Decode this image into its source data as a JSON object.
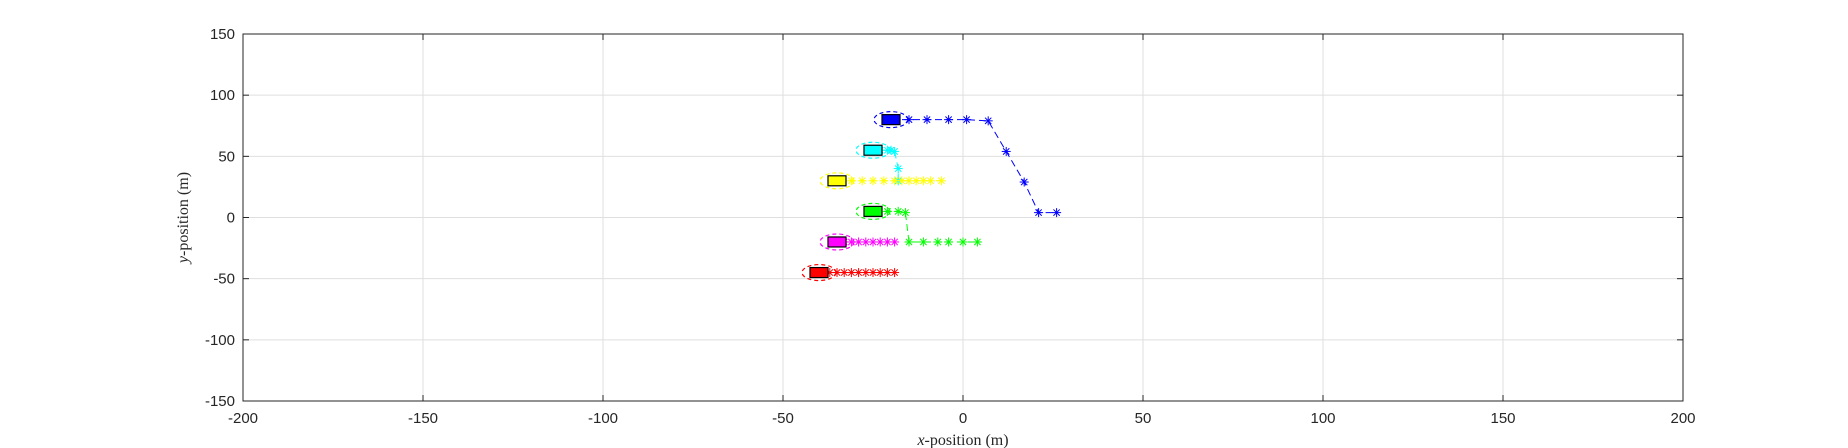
{
  "chart_data": {
    "type": "scatter",
    "xlabel_var": "x",
    "xlabel_rest": "-position (m)",
    "ylabel_var": "y",
    "ylabel_rest": "-position (m)",
    "xlim": [
      -200,
      200
    ],
    "ylim": [
      -150,
      150
    ],
    "xticks": [
      -200,
      -150,
      -100,
      -50,
      0,
      50,
      100,
      150,
      200
    ],
    "yticks": [
      -150,
      -100,
      -50,
      0,
      50,
      100,
      150
    ],
    "grid": true,
    "series": [
      {
        "color": "#0000ff",
        "vehicle": {
          "x": -20,
          "y": 80
        },
        "trajectory": [
          {
            "x": -20,
            "y": 80
          },
          {
            "x": -15,
            "y": 80
          },
          {
            "x": -10,
            "y": 80
          },
          {
            "x": -4,
            "y": 80
          },
          {
            "x": 1,
            "y": 80
          },
          {
            "x": 7,
            "y": 79
          },
          {
            "x": 12,
            "y": 54
          },
          {
            "x": 17,
            "y": 29
          },
          {
            "x": 21,
            "y": 4
          },
          {
            "x": 26,
            "y": 4
          }
        ]
      },
      {
        "color": "#00ffff",
        "vehicle": {
          "x": -25,
          "y": 55
        },
        "trajectory": [
          {
            "x": -25,
            "y": 55
          },
          {
            "x": -23,
            "y": 55
          },
          {
            "x": -21,
            "y": 55
          },
          {
            "x": -20,
            "y": 55
          },
          {
            "x": -19,
            "y": 54
          },
          {
            "x": -18,
            "y": 40
          },
          {
            "x": -18,
            "y": 30
          }
        ]
      },
      {
        "color": "#ffff00",
        "vehicle": {
          "x": -35,
          "y": 30
        },
        "trajectory": [
          {
            "x": -35,
            "y": 30
          },
          {
            "x": -31,
            "y": 30
          },
          {
            "x": -28,
            "y": 30
          },
          {
            "x": -25,
            "y": 30
          },
          {
            "x": -22,
            "y": 30
          },
          {
            "x": -19,
            "y": 30
          },
          {
            "x": -17,
            "y": 30
          },
          {
            "x": -15,
            "y": 30
          },
          {
            "x": -13,
            "y": 30
          },
          {
            "x": -11,
            "y": 30
          },
          {
            "x": -9,
            "y": 30
          },
          {
            "x": -6,
            "y": 30
          }
        ]
      },
      {
        "color": "#00ff00",
        "vehicle": {
          "x": -25,
          "y": 5
        },
        "trajectory": [
          {
            "x": -25,
            "y": 5
          },
          {
            "x": -21,
            "y": 5
          },
          {
            "x": -18,
            "y": 5
          },
          {
            "x": -16,
            "y": 4
          },
          {
            "x": -15,
            "y": -20
          },
          {
            "x": -11,
            "y": -20
          },
          {
            "x": -7,
            "y": -20
          },
          {
            "x": -4,
            "y": -20
          },
          {
            "x": 0,
            "y": -20
          },
          {
            "x": 4,
            "y": -20
          }
        ]
      },
      {
        "color": "#ff00ff",
        "vehicle": {
          "x": -35,
          "y": -20
        },
        "trajectory": [
          {
            "x": -35,
            "y": -20
          },
          {
            "x": -33,
            "y": -20
          },
          {
            "x": -31,
            "y": -20
          },
          {
            "x": -29,
            "y": -20
          },
          {
            "x": -27,
            "y": -20
          },
          {
            "x": -25,
            "y": -20
          },
          {
            "x": -23,
            "y": -20
          },
          {
            "x": -21,
            "y": -20
          },
          {
            "x": -19,
            "y": -20
          }
        ]
      },
      {
        "color": "#ff0000",
        "vehicle": {
          "x": -40,
          "y": -45
        },
        "trajectory": [
          {
            "x": -40,
            "y": -45
          },
          {
            "x": -37,
            "y": -45
          },
          {
            "x": -35,
            "y": -45
          },
          {
            "x": -33,
            "y": -45
          },
          {
            "x": -31,
            "y": -45
          },
          {
            "x": -29,
            "y": -45
          },
          {
            "x": -27,
            "y": -45
          },
          {
            "x": -25,
            "y": -45
          },
          {
            "x": -23,
            "y": -45
          },
          {
            "x": -21,
            "y": -45
          },
          {
            "x": -19,
            "y": -45
          }
        ]
      }
    ]
  }
}
